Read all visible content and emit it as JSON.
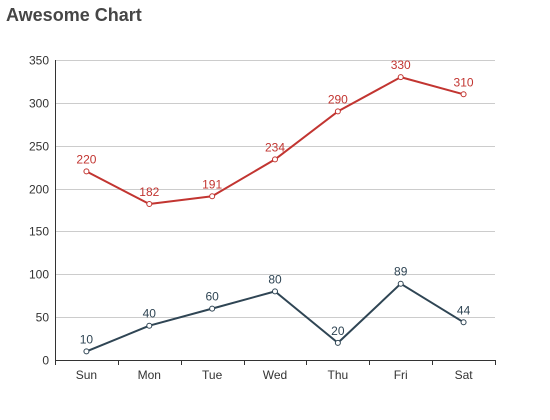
{
  "chart_data": {
    "type": "line",
    "title": "Awesome Chart",
    "xlabel": "",
    "ylabel": "",
    "categories": [
      "Sun",
      "Mon",
      "Tue",
      "Wed",
      "Thu",
      "Fri",
      "Sat"
    ],
    "ylim": [
      0,
      350
    ],
    "yticks": [
      0,
      50,
      100,
      150,
      200,
      250,
      300,
      350
    ],
    "grid": true,
    "legend": "none",
    "series": [
      {
        "values": [
          220,
          182,
          191,
          234,
          290,
          330,
          310
        ],
        "color": "#c23531"
      },
      {
        "values": [
          10,
          40,
          60,
          80,
          20,
          89,
          44
        ],
        "color": "#2f4554"
      }
    ]
  }
}
